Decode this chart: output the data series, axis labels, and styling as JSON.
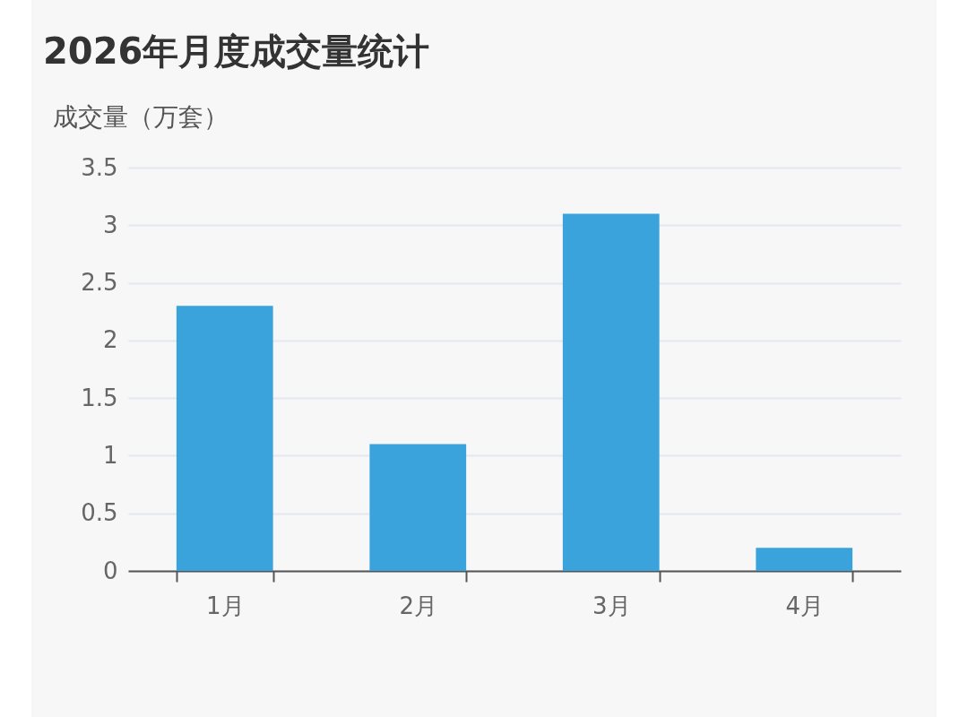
{
  "chart_data": {
    "type": "bar",
    "title": "2026年月度成交量统计",
    "ylabel": "成交量（万套）",
    "categories": [
      "1月",
      "2月",
      "3月",
      "4月"
    ],
    "values": [
      2.3,
      1.1,
      3.1,
      0.2
    ],
    "color": "#3aa3dc",
    "ylim": [
      0,
      3.5
    ],
    "yticks": [
      0,
      0.5,
      1,
      1.5,
      2,
      2.5,
      3,
      3.5
    ],
    "grid": "y"
  }
}
